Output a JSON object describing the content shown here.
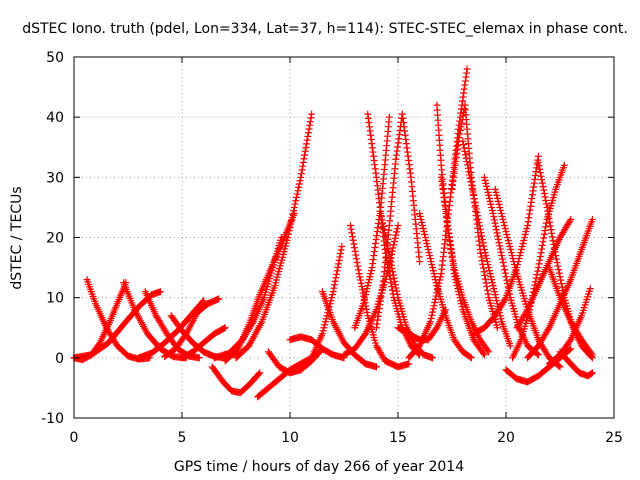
{
  "chart_data": {
    "type": "scatter",
    "title": "dSTEC Iono. truth (pdel, Lon=334, Lat=37, h=114): STEC-STEC_elemax in phase cont.",
    "xlabel": "GPS time / hours of day 266 of year 2014",
    "ylabel": "dSTEC  / TECUs",
    "xlim": [
      0,
      25
    ],
    "ylim": [
      -10,
      50
    ],
    "xticks": [
      0,
      5,
      10,
      15,
      20,
      25
    ],
    "yticks": [
      -10,
      0,
      10,
      20,
      30,
      40,
      50
    ],
    "grid": true,
    "marker": "plus",
    "color": "#ff0000",
    "series": [
      {
        "x": [
          0.0,
          0.4,
          0.8,
          1.2,
          1.6,
          2.0,
          2.4
        ],
        "y": [
          0.0,
          -0.3,
          0.5,
          2.5,
          5.5,
          9.0,
          12.5
        ]
      },
      {
        "x": [
          0.6,
          1.0,
          1.5,
          2.0,
          2.5,
          3.0,
          3.5
        ],
        "y": [
          13.0,
          9.0,
          5.0,
          2.0,
          0.3,
          -0.2,
          0.0
        ]
      },
      {
        "x": [
          0.0,
          0.8,
          1.6,
          2.4,
          3.0,
          3.6,
          4.0
        ],
        "y": [
          0.0,
          0.5,
          2.5,
          6.0,
          8.5,
          10.5,
          11.0
        ]
      },
      {
        "x": [
          2.3,
          2.8,
          3.4,
          4.0,
          4.6,
          5.2
        ],
        "y": [
          12.5,
          8.0,
          4.0,
          1.5,
          0.2,
          0.0
        ]
      },
      {
        "x": [
          3.3,
          3.8,
          4.3,
          4.8,
          5.3,
          5.8
        ],
        "y": [
          11.0,
          7.0,
          4.0,
          1.5,
          0.3,
          0.0
        ]
      },
      {
        "x": [
          3.0,
          3.6,
          4.2,
          4.8,
          5.4,
          6.0
        ],
        "y": [
          0.0,
          0.8,
          2.5,
          4.5,
          7.0,
          9.5
        ]
      },
      {
        "x": [
          4.2,
          4.7,
          5.2,
          5.7,
          6.2,
          6.7
        ],
        "y": [
          0.2,
          1.5,
          4.0,
          7.5,
          9.0,
          9.8
        ]
      },
      {
        "x": [
          5.0,
          5.5,
          6.0,
          6.5,
          7.0
        ],
        "y": [
          0.0,
          1.0,
          2.5,
          4.0,
          5.0
        ]
      },
      {
        "x": [
          4.5,
          5.0,
          5.5,
          6.0,
          6.5,
          7.0
        ],
        "y": [
          7.0,
          4.5,
          2.5,
          1.0,
          0.2,
          0.0
        ]
      },
      {
        "x": [
          6.4,
          6.9,
          7.3,
          7.7,
          8.1,
          8.6
        ],
        "y": [
          -1.5,
          -4.0,
          -5.5,
          -5.8,
          -4.5,
          -2.5
        ]
      },
      {
        "x": [
          6.5,
          7.2,
          7.8,
          8.3,
          8.8,
          9.2,
          9.6
        ],
        "y": [
          0.0,
          0.8,
          3.0,
          6.0,
          10.0,
          15.0,
          20.0
        ]
      },
      {
        "x": [
          7.0,
          7.6,
          8.1,
          8.6,
          9.2,
          9.8,
          10.2
        ],
        "y": [
          -0.5,
          1.5,
          5.5,
          10.5,
          15.5,
          20.5,
          24.0
        ]
      },
      {
        "x": [
          7.5,
          8.1,
          8.7,
          9.3,
          9.9,
          10.5,
          11.0
        ],
        "y": [
          0.0,
          2.0,
          6.0,
          12.0,
          20.0,
          30.0,
          40.5
        ]
      },
      {
        "x": [
          8.5,
          9.0,
          9.5,
          10.0,
          10.5,
          11.0
        ],
        "y": [
          -6.5,
          -5.0,
          -3.5,
          -2.0,
          -1.0,
          0.0
        ]
      },
      {
        "x": [
          9.0,
          9.5,
          10.0,
          10.5,
          11.0,
          11.5
        ],
        "y": [
          1.0,
          -1.5,
          -2.5,
          -2.0,
          -0.5,
          1.5
        ]
      },
      {
        "x": [
          10.0,
          10.5,
          11.0,
          11.5,
          12.0,
          12.5
        ],
        "y": [
          3.0,
          3.5,
          3.0,
          1.5,
          0.5,
          0.0
        ]
      },
      {
        "x": [
          11.0,
          11.5,
          12.0,
          12.4
        ],
        "y": [
          0.0,
          4.0,
          11.0,
          18.5
        ]
      },
      {
        "x": [
          11.5,
          12.0,
          12.5,
          13.0,
          13.5,
          14.0
        ],
        "y": [
          11.0,
          6.0,
          2.5,
          0.5,
          -1.0,
          -1.5
        ]
      },
      {
        "x": [
          12.5,
          13.0,
          13.5,
          14.0,
          14.5,
          15.0
        ],
        "y": [
          0.5,
          1.5,
          4.0,
          8.0,
          14.0,
          22.0
        ]
      },
      {
        "x": [
          12.8,
          13.2,
          13.6,
          14.0,
          14.4,
          15.0,
          15.5
        ],
        "y": [
          22.0,
          14.0,
          7.0,
          2.0,
          -0.5,
          -1.5,
          -1.0
        ]
      },
      {
        "x": [
          13.0,
          13.4,
          13.8,
          14.2,
          14.6
        ],
        "y": [
          5.0,
          9.0,
          15.0,
          25.0,
          40.0
        ]
      },
      {
        "x": [
          13.6,
          14.0,
          14.4,
          14.8,
          15.2,
          15.6,
          16.0
        ],
        "y": [
          40.5,
          30.0,
          18.0,
          10.0,
          5.0,
          2.0,
          0.5
        ]
      },
      {
        "x": [
          14.0,
          14.3,
          14.6,
          14.9,
          15.2,
          15.6,
          16.0
        ],
        "y": [
          5.0,
          12.0,
          22.0,
          33.0,
          40.5,
          30.0,
          16.0
        ]
      },
      {
        "x": [
          14.2,
          14.6,
          15.0,
          15.4,
          15.8,
          16.2,
          16.6
        ],
        "y": [
          24.0,
          17.0,
          10.0,
          5.0,
          2.0,
          0.5,
          0.0
        ]
      },
      {
        "x": [
          15.0,
          15.5,
          16.0,
          16.4,
          16.8,
          17.2
        ],
        "y": [
          5.0,
          4.0,
          3.0,
          3.0,
          5.0,
          8.0
        ]
      },
      {
        "x": [
          15.5,
          16.0,
          16.5,
          17.0,
          17.4,
          17.8,
          18.2
        ],
        "y": [
          0.0,
          2.0,
          6.0,
          14.0,
          26.0,
          38.0,
          48.0
        ]
      },
      {
        "x": [
          16.0,
          16.4,
          16.8,
          17.2,
          17.6,
          18.0,
          18.4
        ],
        "y": [
          24.0,
          18.0,
          12.0,
          7.0,
          3.0,
          1.0,
          0.0
        ]
      },
      {
        "x": [
          16.8,
          17.0,
          17.3,
          17.6,
          18.0,
          18.5,
          19.0
        ],
        "y": [
          42.0,
          32.0,
          22.0,
          14.0,
          8.0,
          3.0,
          0.5
        ]
      },
      {
        "x": [
          17.0,
          17.3,
          17.6,
          18.0,
          18.4,
          18.8,
          19.2
        ],
        "y": [
          30.0,
          22.0,
          15.0,
          10.0,
          6.0,
          3.0,
          1.0
        ]
      },
      {
        "x": [
          17.5,
          17.8,
          18.1,
          18.4,
          18.8,
          19.2,
          19.6
        ],
        "y": [
          28.0,
          36.0,
          42.0,
          30.0,
          18.0,
          10.0,
          5.0
        ]
      },
      {
        "x": [
          18.0,
          18.5,
          19.0,
          19.4,
          19.8,
          20.2
        ],
        "y": [
          36.0,
          27.0,
          18.0,
          12.0,
          6.0,
          2.0
        ]
      },
      {
        "x": [
          18.5,
          19.0,
          19.5,
          20.0,
          20.5,
          21.0,
          21.5
        ],
        "y": [
          4.0,
          5.0,
          7.0,
          10.0,
          15.0,
          22.0,
          33.5
        ]
      },
      {
        "x": [
          19.0,
          19.4,
          19.8,
          20.2,
          20.6,
          21.0,
          21.5
        ],
        "y": [
          30.0,
          24.0,
          17.0,
          10.0,
          5.0,
          2.0,
          0.5
        ]
      },
      {
        "x": [
          19.5,
          20.0,
          20.5,
          21.0,
          21.5,
          22.0,
          22.5
        ],
        "y": [
          28.0,
          21.0,
          14.0,
          8.0,
          3.0,
          0.0,
          -1.5
        ]
      },
      {
        "x": [
          20.3,
          20.7,
          21.1,
          21.5,
          21.9,
          22.3,
          22.7
        ],
        "y": [
          0.0,
          3.0,
          8.0,
          15.0,
          23.0,
          28.0,
          32.0
        ]
      },
      {
        "x": [
          21.5,
          21.9,
          22.3,
          22.7,
          23.1,
          23.5,
          24.0
        ],
        "y": [
          32.5,
          25.0,
          17.0,
          10.0,
          5.0,
          2.0,
          0.0
        ]
      },
      {
        "x": [
          20.0,
          20.5,
          21.0,
          21.5,
          22.0,
          22.5,
          23.0
        ],
        "y": [
          -2.0,
          -3.5,
          -4.0,
          -3.0,
          -1.5,
          0.0,
          1.5
        ]
      },
      {
        "x": [
          21.0,
          21.5,
          22.0,
          22.5,
          23.0,
          23.5,
          24.0
        ],
        "y": [
          0.0,
          2.0,
          5.0,
          9.0,
          13.0,
          18.0,
          23.0
        ]
      },
      {
        "x": [
          22.0,
          22.5,
          23.0,
          23.5,
          23.9
        ],
        "y": [
          -1.0,
          0.5,
          3.0,
          7.0,
          11.5
        ]
      },
      {
        "x": [
          22.5,
          23.0,
          23.4,
          23.8,
          24.0
        ],
        "y": [
          1.0,
          -1.0,
          -2.5,
          -3.0,
          -2.5
        ]
      },
      {
        "x": [
          20.5,
          21.0,
          21.5,
          22.0,
          22.5,
          23.0
        ],
        "y": [
          5.0,
          8.0,
          12.0,
          16.0,
          20.0,
          23.0
        ]
      },
      {
        "x": [
          22.0,
          22.5,
          23.0,
          23.5,
          24.0
        ],
        "y": [
          15.0,
          10.0,
          6.0,
          3.0,
          0.5
        ]
      }
    ]
  }
}
